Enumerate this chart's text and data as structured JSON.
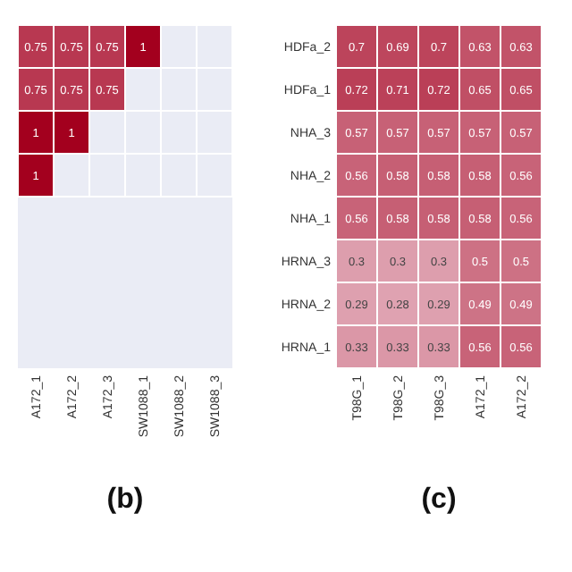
{
  "chart_data": [
    {
      "type": "heatmap",
      "title": "(b)",
      "data_labels": true,
      "categories": [
        "A172_1",
        "A172_2",
        "A172_3",
        "SW1088_1",
        "SW1088_2",
        "SW1088_3"
      ],
      "y_categories": [
        null,
        null,
        null,
        null
      ],
      "cells": [
        [
          0.75,
          0.75,
          0.75,
          1,
          null,
          null
        ],
        [
          0.75,
          0.75,
          0.75,
          null,
          null,
          null
        ],
        [
          1,
          1,
          null,
          null,
          null,
          null
        ],
        [
          1,
          null,
          null,
          null,
          null,
          null
        ]
      ]
    },
    {
      "type": "heatmap",
      "title": "(c)",
      "data_labels": true,
      "categories": [
        "T98G_1",
        "T98G_2",
        "T98G_3",
        "A172_1",
        "A172_2"
      ],
      "y_categories": [
        "HDFa_2",
        "HDFa_1",
        "NHA_3",
        "NHA_2",
        "NHA_1",
        "HRNA_3",
        "HRNA_2",
        "HRNA_1"
      ],
      "cells": [
        [
          0.7,
          0.69,
          0.7,
          0.63,
          0.63
        ],
        [
          0.72,
          0.71,
          0.72,
          0.65,
          0.65
        ],
        [
          0.57,
          0.57,
          0.57,
          0.57,
          0.57
        ],
        [
          0.56,
          0.58,
          0.58,
          0.58,
          0.56
        ],
        [
          0.56,
          0.58,
          0.58,
          0.58,
          0.56
        ],
        [
          0.3,
          0.3,
          0.3,
          0.5,
          0.5
        ],
        [
          0.29,
          0.28,
          0.29,
          0.49,
          0.49
        ],
        [
          0.33,
          0.33,
          0.33,
          0.56,
          0.56
        ]
      ]
    }
  ]
}
